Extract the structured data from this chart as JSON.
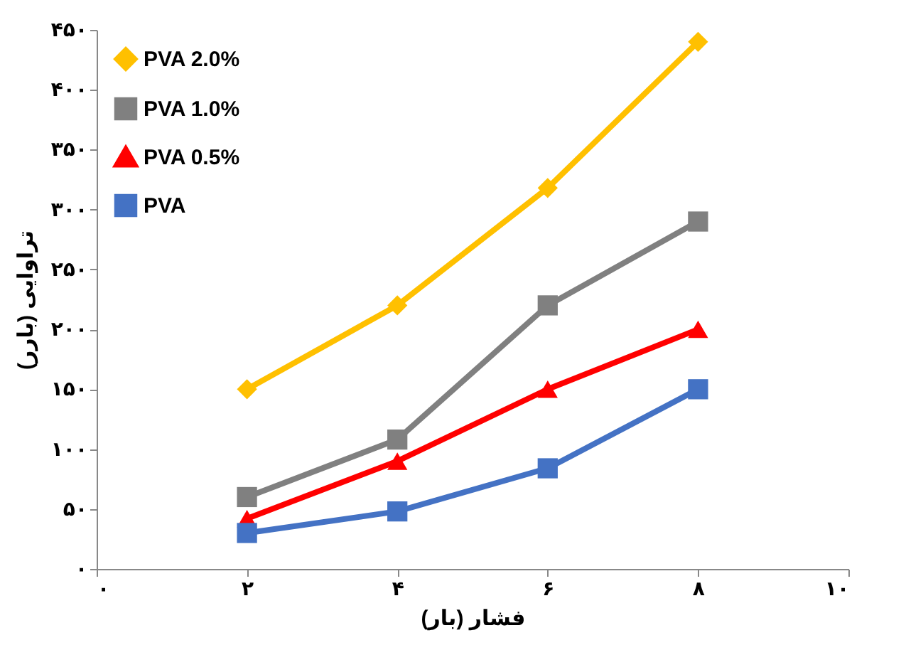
{
  "chart_data": {
    "type": "line",
    "xlabel": "فشار (بار)",
    "ylabel": "تراوایی (بارر)",
    "x": [
      2,
      4,
      6,
      8
    ],
    "series": [
      {
        "name": "PVA 2.0%",
        "color": "#ffc000",
        "marker": "diamond",
        "values": [
          150,
          220,
          318,
          440
        ]
      },
      {
        "name": "PVA 1.0%",
        "color": "#808080",
        "marker": "square",
        "values": [
          60,
          108,
          220,
          290
        ]
      },
      {
        "name": "PVA 0.5%",
        "color": "#ff0000",
        "marker": "triangle",
        "values": [
          42,
          90,
          150,
          200
        ]
      },
      {
        "name": "PVA",
        "color": "#4472c4",
        "marker": "square",
        "values": [
          30,
          48,
          84,
          150
        ]
      }
    ],
    "xlim": [
      0,
      10
    ],
    "xticks": [
      {
        "value": 0,
        "label": "۰"
      },
      {
        "value": 2,
        "label": "۲"
      },
      {
        "value": 4,
        "label": "۴"
      },
      {
        "value": 6,
        "label": "۶"
      },
      {
        "value": 8,
        "label": "۸"
      },
      {
        "value": 10,
        "label": "۱۰"
      }
    ],
    "ylim": [
      0,
      450
    ],
    "yticks": [
      {
        "value": 0,
        "label": "۰"
      },
      {
        "value": 50,
        "label": "۵۰"
      },
      {
        "value": 100,
        "label": "۱۰۰"
      },
      {
        "value": 150,
        "label": "۱۵۰"
      },
      {
        "value": 200,
        "label": "۲۰۰"
      },
      {
        "value": 250,
        "label": "۲۵۰"
      },
      {
        "value": 300,
        "label": "۳۰۰"
      },
      {
        "value": 350,
        "label": "۳۵۰"
      },
      {
        "value": 400,
        "label": "۴۰۰"
      },
      {
        "value": 450,
        "label": "۴۵۰"
      }
    ],
    "grid": false,
    "legend": "top left",
    "line_style": "solid"
  }
}
